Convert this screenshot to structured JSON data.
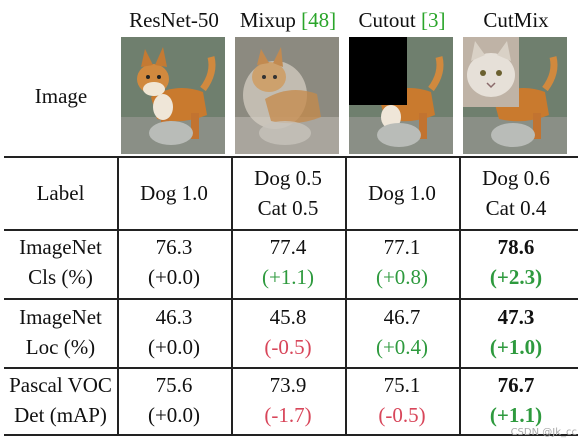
{
  "columns": [
    {
      "name": "ResNet-50",
      "ref": ""
    },
    {
      "name": "Mixup ",
      "ref": "[48]"
    },
    {
      "name": "Cutout ",
      "ref": "[3]"
    },
    {
      "name": "CutMix",
      "ref": ""
    }
  ],
  "image_row_label": "Image",
  "label_row": {
    "header": "Label",
    "cells": [
      [
        "Dog 1.0"
      ],
      [
        "Dog 0.5",
        "Cat 0.5"
      ],
      [
        "Dog 1.0"
      ],
      [
        "Dog 0.6",
        "Cat 0.4"
      ]
    ]
  },
  "metric_rows": [
    {
      "label": [
        "ImageNet",
        "Cls (%)"
      ],
      "values": [
        "76.3",
        "77.4",
        "77.1",
        "78.6"
      ],
      "deltas": [
        "(+0.0)",
        "(+1.1)",
        "(+0.8)",
        "(+2.3)"
      ]
    },
    {
      "label": [
        "ImageNet",
        "Loc (%)"
      ],
      "values": [
        "46.3",
        "45.8",
        "46.7",
        "47.3"
      ],
      "deltas": [
        "(+0.0)",
        "(-0.5)",
        "(+0.4)",
        "(+1.0)"
      ]
    },
    {
      "label": [
        "Pascal VOC",
        "Det (mAP)"
      ],
      "values": [
        "75.6",
        "73.9",
        "75.1",
        "76.7"
      ],
      "deltas": [
        "(+0.0)",
        "(-1.7)",
        "(-0.5)",
        "(+1.1)"
      ]
    }
  ],
  "best_column_index": 3,
  "colors": {
    "positive": "#2e9a3e",
    "negative": "#d8465a",
    "neutral": "#111111",
    "citation": "#2aa52a"
  },
  "watermark": "CSDN @Jk_cc"
}
